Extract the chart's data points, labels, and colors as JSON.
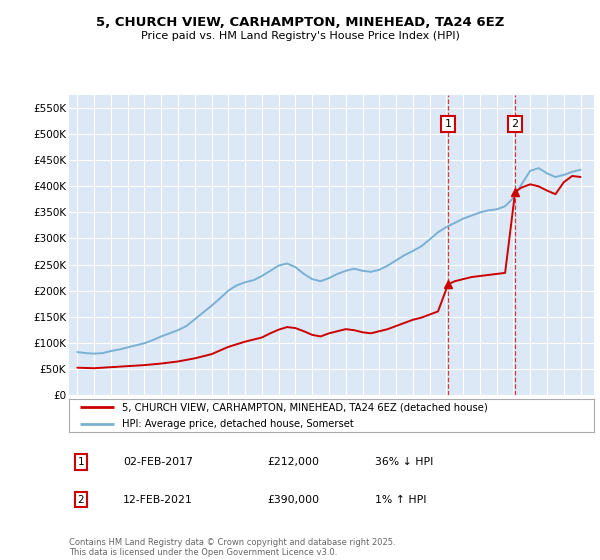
{
  "title": "5, CHURCH VIEW, CARHAMPTON, MINEHEAD, TA24 6EZ",
  "subtitle": "Price paid vs. HM Land Registry's House Price Index (HPI)",
  "ylim": [
    0,
    575000
  ],
  "yticks": [
    0,
    50000,
    100000,
    150000,
    200000,
    250000,
    300000,
    350000,
    400000,
    450000,
    500000,
    550000
  ],
  "ytick_labels": [
    "£0",
    "£50K",
    "£100K",
    "£150K",
    "£200K",
    "£250K",
    "£300K",
    "£350K",
    "£400K",
    "£450K",
    "£500K",
    "£550K"
  ],
  "background_color": "#ffffff",
  "plot_bg_color": "#dce8f5",
  "grid_color": "#ffffff",
  "transaction1_date": 2017.1,
  "transaction1_price": 212000,
  "transaction2_date": 2021.1,
  "transaction2_price": 390000,
  "legend_line1": "5, CHURCH VIEW, CARHAMPTON, MINEHEAD, TA24 6EZ (detached house)",
  "legend_line2": "HPI: Average price, detached house, Somerset",
  "footer": "Contains HM Land Registry data © Crown copyright and database right 2025.\nThis data is licensed under the Open Government Licence v3.0.",
  "table_entries": [
    {
      "num": "1",
      "date": "02-FEB-2017",
      "price": "£212,000",
      "hpi": "36% ↓ HPI"
    },
    {
      "num": "2",
      "date": "12-FEB-2021",
      "price": "£390,000",
      "hpi": "1% ↑ HPI"
    }
  ],
  "hpi_years": [
    1995.0,
    1995.5,
    1996.0,
    1996.5,
    1997.0,
    1997.5,
    1998.0,
    1998.5,
    1999.0,
    1999.5,
    2000.0,
    2000.5,
    2001.0,
    2001.5,
    2002.0,
    2002.5,
    2003.0,
    2003.5,
    2004.0,
    2004.5,
    2005.0,
    2005.5,
    2006.0,
    2006.5,
    2007.0,
    2007.5,
    2008.0,
    2008.5,
    2009.0,
    2009.5,
    2010.0,
    2010.5,
    2011.0,
    2011.5,
    2012.0,
    2012.5,
    2013.0,
    2013.5,
    2014.0,
    2014.5,
    2015.0,
    2015.5,
    2016.0,
    2016.5,
    2017.0,
    2017.5,
    2018.0,
    2018.5,
    2019.0,
    2019.5,
    2020.0,
    2020.5,
    2021.0,
    2021.5,
    2022.0,
    2022.5,
    2023.0,
    2023.5,
    2024.0,
    2024.5,
    2025.0
  ],
  "hpi_values": [
    82000,
    80000,
    79000,
    80000,
    84000,
    87000,
    91000,
    95000,
    99000,
    105000,
    112000,
    118000,
    124000,
    132000,
    145000,
    158000,
    171000,
    185000,
    200000,
    210000,
    216000,
    220000,
    228000,
    238000,
    248000,
    252000,
    245000,
    232000,
    222000,
    218000,
    224000,
    232000,
    238000,
    242000,
    238000,
    236000,
    240000,
    248000,
    258000,
    268000,
    276000,
    285000,
    298000,
    312000,
    322000,
    330000,
    338000,
    344000,
    350000,
    354000,
    356000,
    362000,
    378000,
    405000,
    430000,
    435000,
    425000,
    418000,
    422000,
    428000,
    432000
  ],
  "price_years": [
    1995.0,
    1996.0,
    1997.0,
    1998.0,
    1999.0,
    2000.0,
    2001.0,
    2002.0,
    2003.0,
    2004.0,
    2005.0,
    2006.0,
    2006.5,
    2007.0,
    2007.5,
    2008.0,
    2008.5,
    2009.0,
    2009.5,
    2010.0,
    2010.5,
    2011.0,
    2011.5,
    2012.0,
    2012.5,
    2013.0,
    2013.5,
    2014.0,
    2014.5,
    2015.0,
    2015.5,
    2016.0,
    2016.5,
    2017.1,
    2017.5,
    2018.0,
    2018.5,
    2019.0,
    2019.5,
    2020.0,
    2020.5,
    2021.1,
    2021.5,
    2022.0,
    2022.5,
    2023.0,
    2023.5,
    2024.0,
    2024.5,
    2025.0
  ],
  "price_values": [
    52000,
    51000,
    53000,
    55000,
    57000,
    60000,
    64000,
    70000,
    78000,
    92000,
    102000,
    110000,
    118000,
    125000,
    130000,
    128000,
    122000,
    115000,
    112000,
    118000,
    122000,
    126000,
    124000,
    120000,
    118000,
    122000,
    126000,
    132000,
    138000,
    144000,
    148000,
    154000,
    160000,
    212000,
    218000,
    222000,
    226000,
    228000,
    230000,
    232000,
    234000,
    390000,
    398000,
    404000,
    400000,
    392000,
    385000,
    408000,
    420000,
    418000
  ],
  "line_color_red": "#cc0000",
  "line_color_blue": "#7ab0d4",
  "marker_color": "#cc0000",
  "xlim_left": 1994.5,
  "xlim_right": 2025.8
}
